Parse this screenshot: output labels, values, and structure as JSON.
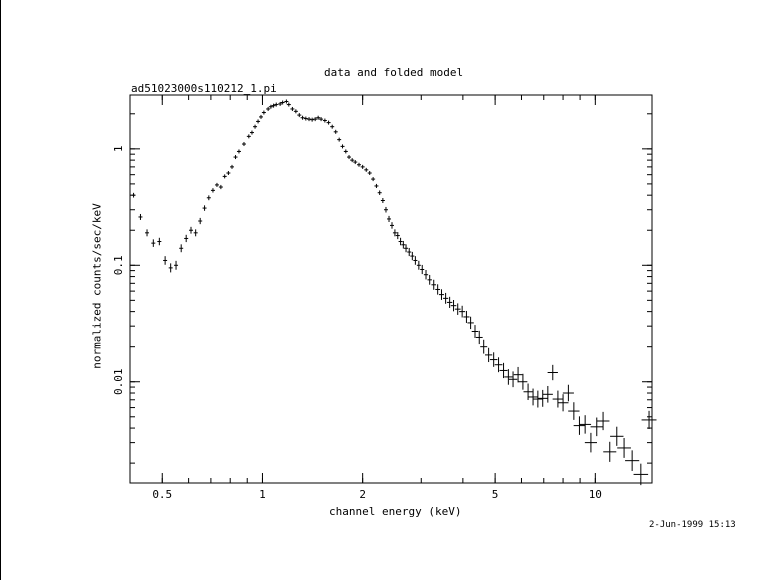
{
  "chart_data": {
    "type": "scatter",
    "title": "data and folded model",
    "subtitle": "ad51023000s110212_1.pi",
    "xlabel": "channel energy (keV)",
    "ylabel": "normalized counts/sec/keV",
    "timestamp": "2-Jun-1999 15:13",
    "x_scale": "log",
    "y_scale": "log",
    "xlim": [
      0.4,
      14.8
    ],
    "ylim": [
      0.00135,
      2.9
    ],
    "x_tick_labels": [
      "0.5",
      "1",
      "2",
      "5",
      "10"
    ],
    "y_tick_labels": [
      "0.01",
      "0.1",
      "1"
    ],
    "series": [
      {
        "points": [
          [
            0.41,
            0.4
          ],
          [
            0.43,
            0.26
          ],
          [
            0.45,
            0.19
          ],
          [
            0.47,
            0.155
          ],
          [
            0.49,
            0.16
          ],
          [
            0.51,
            0.11
          ],
          [
            0.53,
            0.095
          ],
          [
            0.55,
            0.1
          ],
          [
            0.57,
            0.14
          ],
          [
            0.59,
            0.17
          ],
          [
            0.61,
            0.2
          ],
          [
            0.63,
            0.19
          ],
          [
            0.65,
            0.24
          ],
          [
            0.67,
            0.31
          ],
          [
            0.69,
            0.38
          ],
          [
            0.71,
            0.44
          ],
          [
            0.73,
            0.49
          ],
          [
            0.75,
            0.47
          ],
          [
            0.77,
            0.58
          ],
          [
            0.79,
            0.62
          ],
          [
            0.81,
            0.7
          ],
          [
            0.83,
            0.85
          ],
          [
            0.85,
            0.95
          ],
          [
            0.88,
            1.1
          ],
          [
            0.91,
            1.28
          ],
          [
            0.93,
            1.38
          ],
          [
            0.95,
            1.55
          ],
          [
            0.97,
            1.72
          ],
          [
            0.99,
            1.88
          ],
          [
            1.01,
            2.05
          ],
          [
            1.04,
            2.2
          ],
          [
            1.06,
            2.3
          ],
          [
            1.08,
            2.35
          ],
          [
            1.1,
            2.4
          ],
          [
            1.13,
            2.43
          ],
          [
            1.15,
            2.5
          ],
          [
            1.18,
            2.55
          ],
          [
            1.2,
            2.4
          ],
          [
            1.23,
            2.2
          ],
          [
            1.26,
            2.1
          ],
          [
            1.29,
            1.95
          ],
          [
            1.32,
            1.85
          ],
          [
            1.35,
            1.82
          ],
          [
            1.38,
            1.8
          ],
          [
            1.41,
            1.78
          ],
          [
            1.44,
            1.8
          ],
          [
            1.47,
            1.85
          ],
          [
            1.5,
            1.8
          ],
          [
            1.54,
            1.75
          ],
          [
            1.58,
            1.68
          ],
          [
            1.62,
            1.55
          ],
          [
            1.66,
            1.4
          ],
          [
            1.7,
            1.2
          ],
          [
            1.74,
            1.05
          ],
          [
            1.78,
            0.95
          ],
          [
            1.82,
            0.85
          ],
          [
            1.86,
            0.8
          ],
          [
            1.9,
            0.77
          ],
          [
            1.95,
            0.73
          ],
          [
            2.0,
            0.7
          ],
          [
            2.05,
            0.66
          ],
          [
            2.1,
            0.62
          ],
          [
            2.15,
            0.55
          ],
          [
            2.2,
            0.48
          ],
          [
            2.25,
            0.42
          ],
          [
            2.3,
            0.36
          ],
          [
            2.35,
            0.3
          ],
          [
            2.4,
            0.25
          ],
          [
            2.45,
            0.22
          ],
          [
            2.5,
            0.19
          ],
          [
            2.55,
            0.18
          ],
          [
            2.6,
            0.16
          ],
          [
            2.65,
            0.15
          ],
          [
            2.7,
            0.14
          ],
          [
            2.76,
            0.13
          ],
          [
            2.82,
            0.12
          ],
          [
            2.88,
            0.11
          ],
          [
            2.95,
            0.1
          ],
          [
            3.02,
            0.092
          ],
          [
            3.1,
            0.083
          ],
          [
            3.18,
            0.075
          ],
          [
            3.27,
            0.068
          ],
          [
            3.36,
            0.062
          ],
          [
            3.45,
            0.056
          ],
          [
            3.55,
            0.052
          ],
          [
            3.65,
            0.048
          ],
          [
            3.75,
            0.045
          ],
          [
            3.86,
            0.042
          ],
          [
            3.98,
            0.04
          ],
          [
            4.1,
            0.036
          ],
          [
            4.22,
            0.032
          ],
          [
            4.35,
            0.027
          ],
          [
            4.48,
            0.024
          ],
          [
            4.62,
            0.02
          ],
          [
            4.78,
            0.017
          ],
          [
            4.95,
            0.0155
          ],
          [
            5.12,
            0.014
          ],
          [
            5.3,
            0.0125
          ],
          [
            5.48,
            0.011
          ],
          [
            5.66,
            0.0105
          ],
          [
            5.86,
            0.0115
          ],
          [
            6.06,
            0.01
          ],
          [
            6.28,
            0.0082
          ],
          [
            6.5,
            0.0074
          ],
          [
            6.72,
            0.0071
          ],
          [
            6.95,
            0.0072
          ],
          [
            7.2,
            0.0078
          ],
          [
            7.45,
            0.012
          ],
          [
            7.72,
            0.0071
          ],
          [
            8.0,
            0.0066
          ],
          [
            8.3,
            0.008
          ],
          [
            8.62,
            0.0056
          ],
          [
            8.96,
            0.0042
          ],
          [
            9.32,
            0.0043
          ],
          [
            9.7,
            0.003
          ],
          [
            10.1,
            0.0041
          ],
          [
            10.55,
            0.0046
          ],
          [
            11.05,
            0.0025
          ],
          [
            11.6,
            0.0034
          ],
          [
            12.2,
            0.0027
          ],
          [
            12.9,
            0.0021
          ],
          [
            13.7,
            0.0016
          ],
          [
            14.5,
            0.0047
          ]
        ]
      }
    ]
  }
}
